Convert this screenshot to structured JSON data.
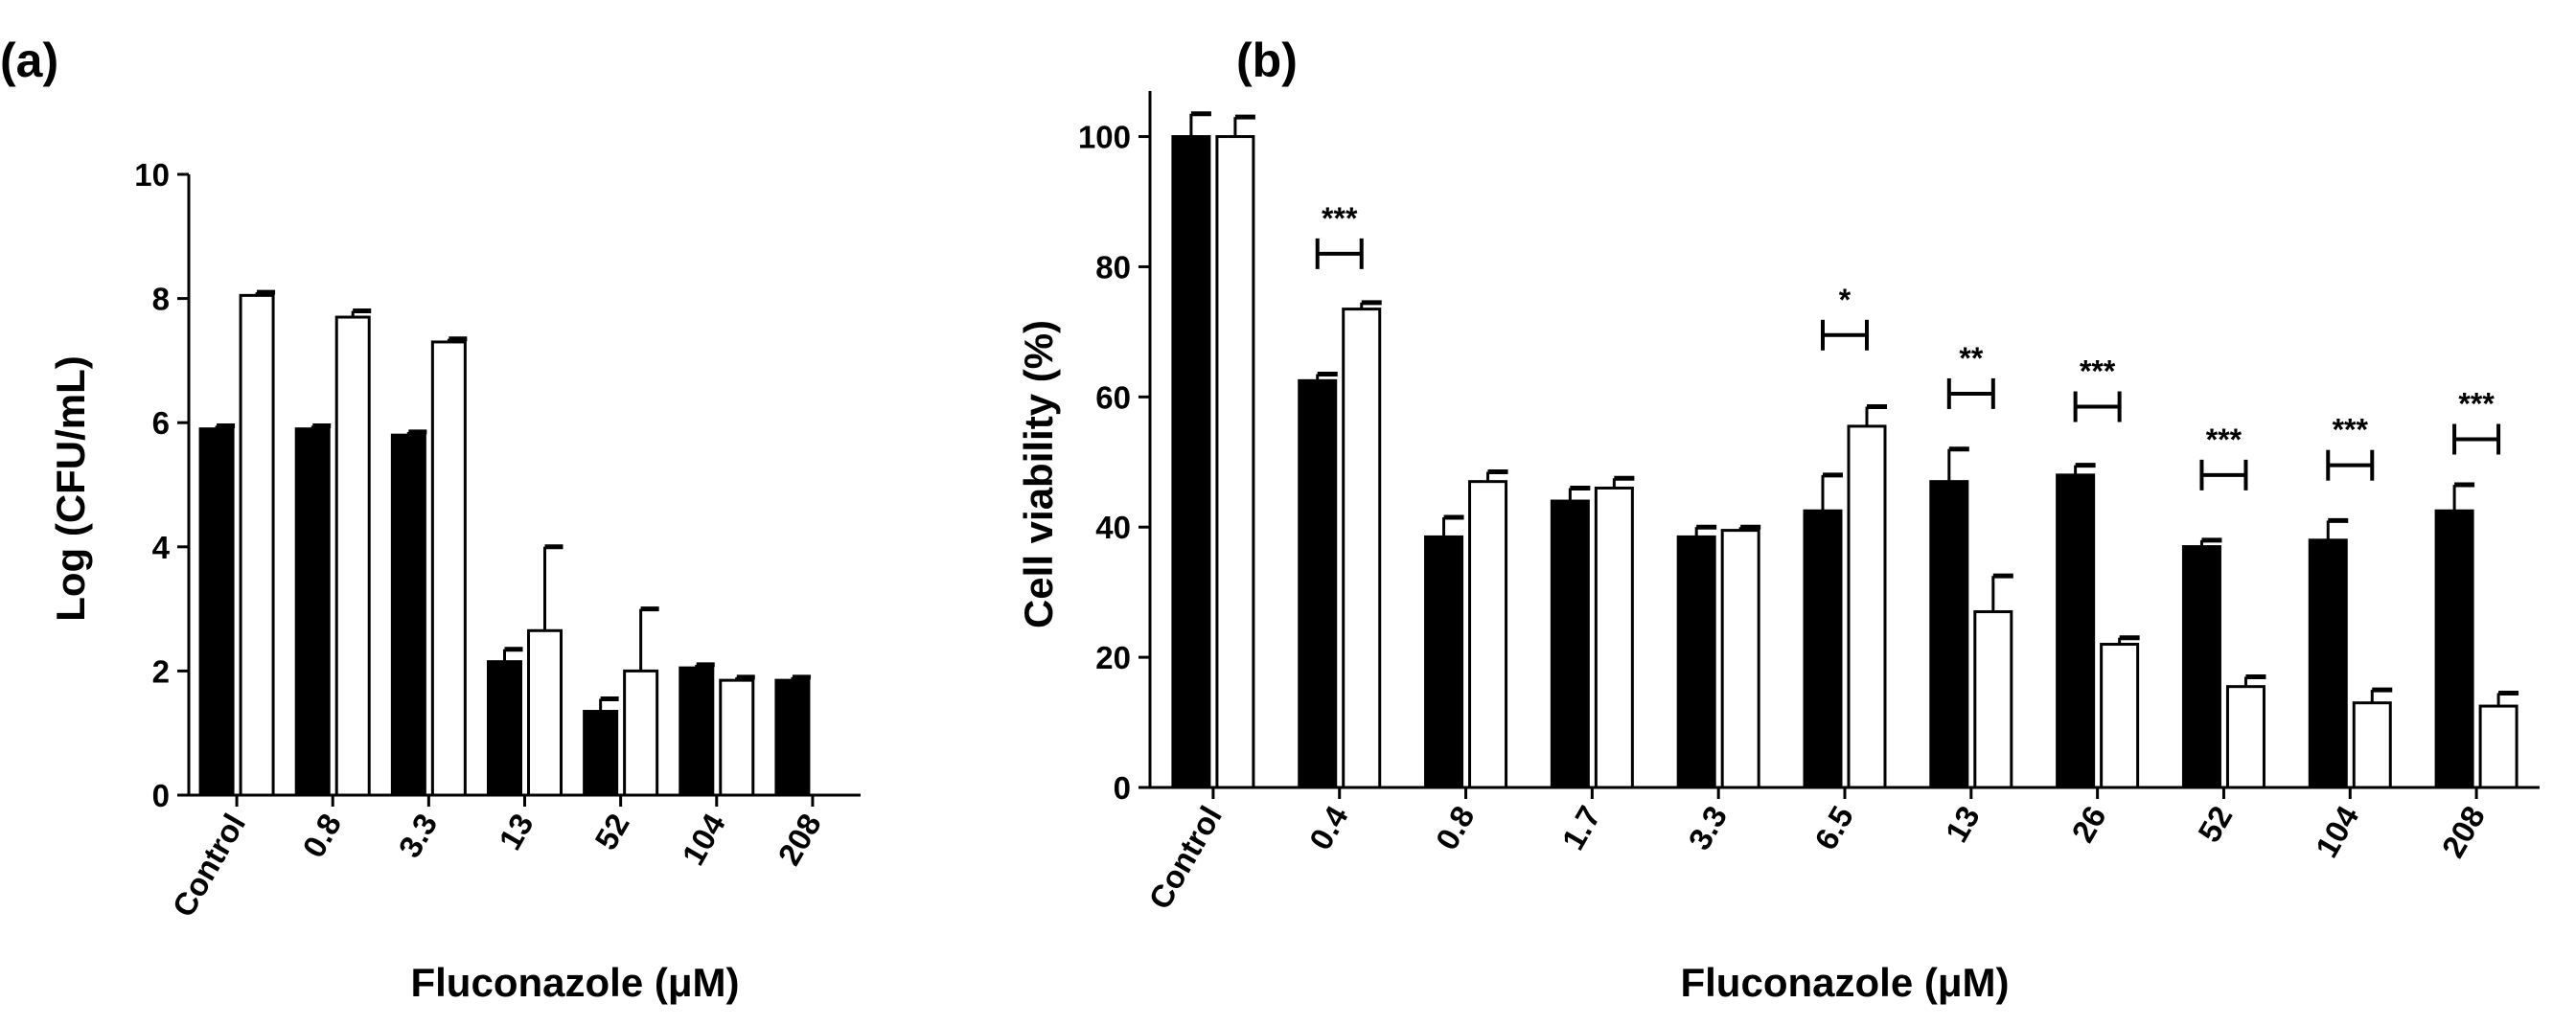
{
  "chart_data": [
    {
      "panel": "(a)",
      "type": "bar",
      "xlabel": "Fluconazole (μM)",
      "ylabel": "Log (CFU/mL)",
      "ylim": [
        0,
        10
      ],
      "yticks": [
        0,
        2,
        4,
        6,
        8,
        10
      ],
      "grid": false,
      "legend": "none",
      "categories": [
        "Control",
        "0.8",
        "3.3",
        "13",
        "52",
        "104",
        "208"
      ],
      "series": [
        {
          "fill": "#000000",
          "values": [
            5.9,
            5.9,
            5.8,
            2.15,
            1.35,
            2.05,
            1.85
          ],
          "errors": [
            0.05,
            0.05,
            0.05,
            0.2,
            0.2,
            0.05,
            0.05
          ]
        },
        {
          "fill": "#ffffff",
          "values": [
            8.05,
            7.7,
            7.3,
            2.65,
            2.0,
            1.85,
            null
          ],
          "errors": [
            0.05,
            0.1,
            0.05,
            1.35,
            1.0,
            0.05,
            null
          ]
        }
      ],
      "significance": []
    },
    {
      "panel": "(b)",
      "type": "bar",
      "xlabel": "Fluconazole (μM)",
      "ylabel": "Cell viability (%)",
      "ylim": [
        0,
        107
      ],
      "yticks": [
        0,
        20,
        40,
        60,
        80,
        100
      ],
      "grid": false,
      "legend": "none",
      "categories": [
        "Control",
        "0.4",
        "0.8",
        "1.7",
        "3.3",
        "6.5",
        "13",
        "26",
        "52",
        "104",
        "208"
      ],
      "series": [
        {
          "fill": "#000000",
          "values": [
            100,
            62.5,
            38.5,
            44,
            38.5,
            42.5,
            47,
            48,
            37,
            38,
            42.5
          ],
          "errors": [
            3.5,
            1,
            3,
            2,
            1.5,
            5.5,
            5,
            1.5,
            1,
            3,
            4
          ]
        },
        {
          "fill": "#ffffff",
          "values": [
            100,
            73.5,
            47,
            46,
            39.5,
            55.5,
            27,
            22,
            15.5,
            13,
            12.5
          ],
          "errors": [
            3,
            1,
            1.5,
            1.5,
            0.5,
            3,
            5.5,
            1,
            1.5,
            2,
            2
          ]
        }
      ],
      "significance": [
        {
          "index": 1,
          "label": "***",
          "y": 82
        },
        {
          "index": 5,
          "label": "*",
          "y": 69.5
        },
        {
          "index": 6,
          "label": "**",
          "y": 60.5
        },
        {
          "index": 7,
          "label": "***",
          "y": 58.5
        },
        {
          "index": 8,
          "label": "***",
          "y": 48
        },
        {
          "index": 9,
          "label": "***",
          "y": 49.5
        },
        {
          "index": 10,
          "label": "***",
          "y": 53.5
        }
      ]
    }
  ]
}
